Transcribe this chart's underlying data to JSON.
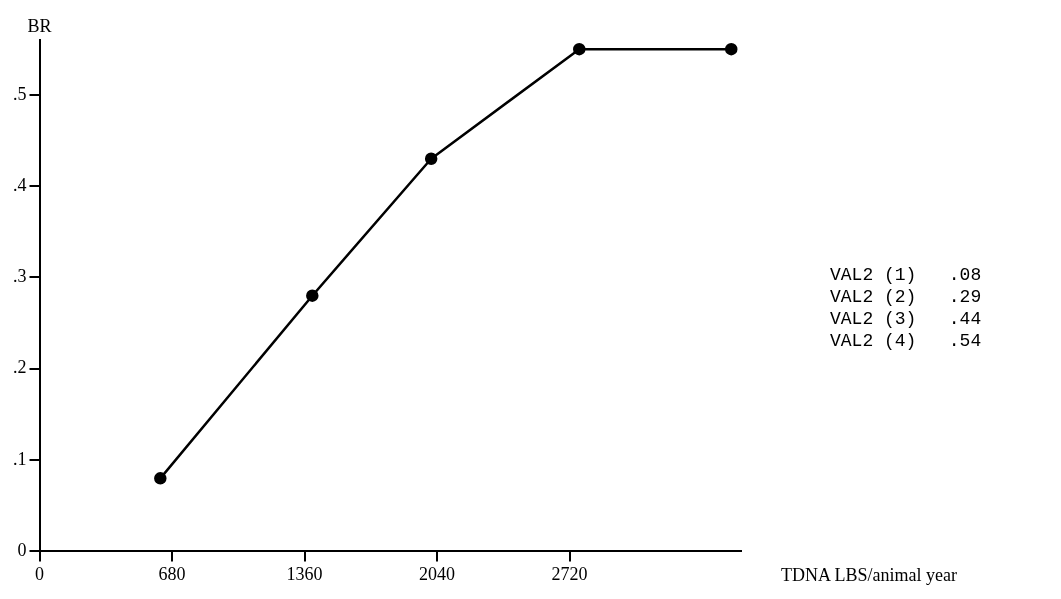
{
  "chart_data": {
    "type": "line",
    "xlabel": "TDNA LBS/animal year",
    "ylabel": "BR",
    "x": [
      620,
      1400,
      2010,
      2770,
      3550
    ],
    "values": [
      0.08,
      0.28,
      0.43,
      0.55,
      0.55
    ],
    "color": "#000000",
    "marker": "circle",
    "line_style": "solid",
    "grid": false,
    "legend": false,
    "xlim": [
      0,
      3600
    ],
    "xticks": [
      0,
      680,
      1360,
      2040,
      2720
    ],
    "ylim": [
      0,
      0.56
    ],
    "yticks": [
      0,
      {
        "value": 0.1,
        "label": ".1"
      },
      {
        "value": 0.2,
        "label": ".2"
      },
      {
        "value": 0.3,
        "label": ".3"
      },
      {
        "value": 0.4,
        "label": ".4"
      },
      {
        "value": 0.5,
        "label": ".5"
      }
    ],
    "annotations": [
      "VAL2 (1)   .08",
      "VAL2 (2)   .29",
      "VAL2 (3)   .44",
      "VAL2 (4)   .54"
    ]
  }
}
